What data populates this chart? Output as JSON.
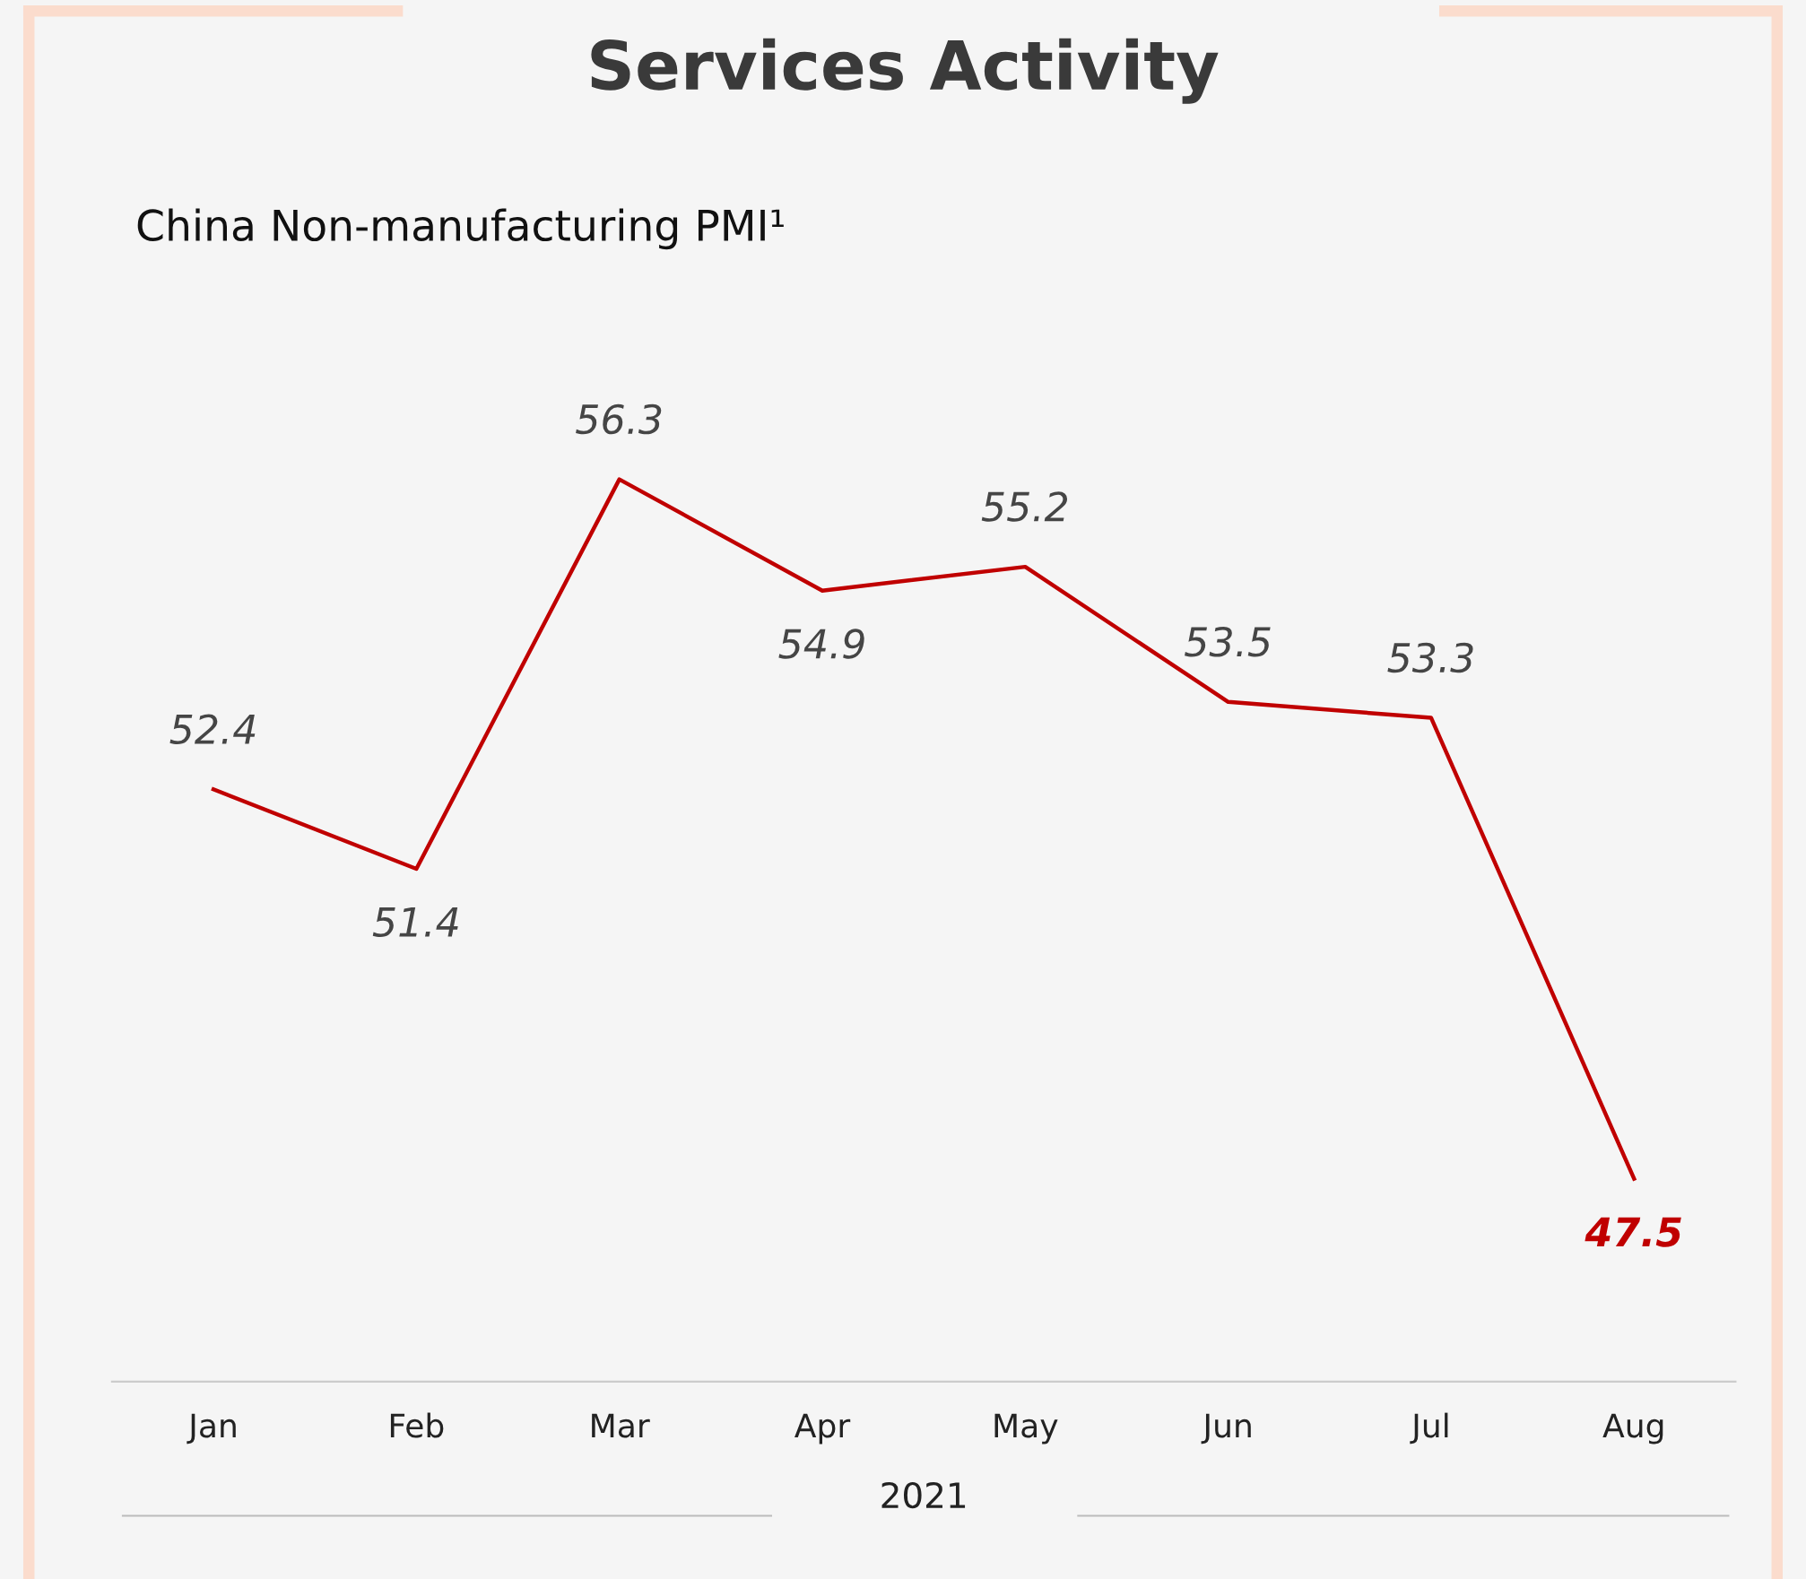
{
  "chart_data": {
    "type": "line",
    "title": "Services Activity",
    "subtitle": "China Non-manufacturing PMI¹",
    "xlabel": "2021",
    "categories": [
      "Jan",
      "Feb",
      "Mar",
      "Apr",
      "May",
      "Jun",
      "Jul",
      "Aug"
    ],
    "series": [
      {
        "color": "#c00000",
        "values": [
          52.4,
          51.4,
          56.3,
          54.9,
          55.2,
          53.5,
          53.3,
          47.5
        ]
      }
    ],
    "data_labels": true,
    "grid": false,
    "legend": false,
    "marker": "none",
    "line_style": "solid",
    "tick_labels": "x"
  }
}
